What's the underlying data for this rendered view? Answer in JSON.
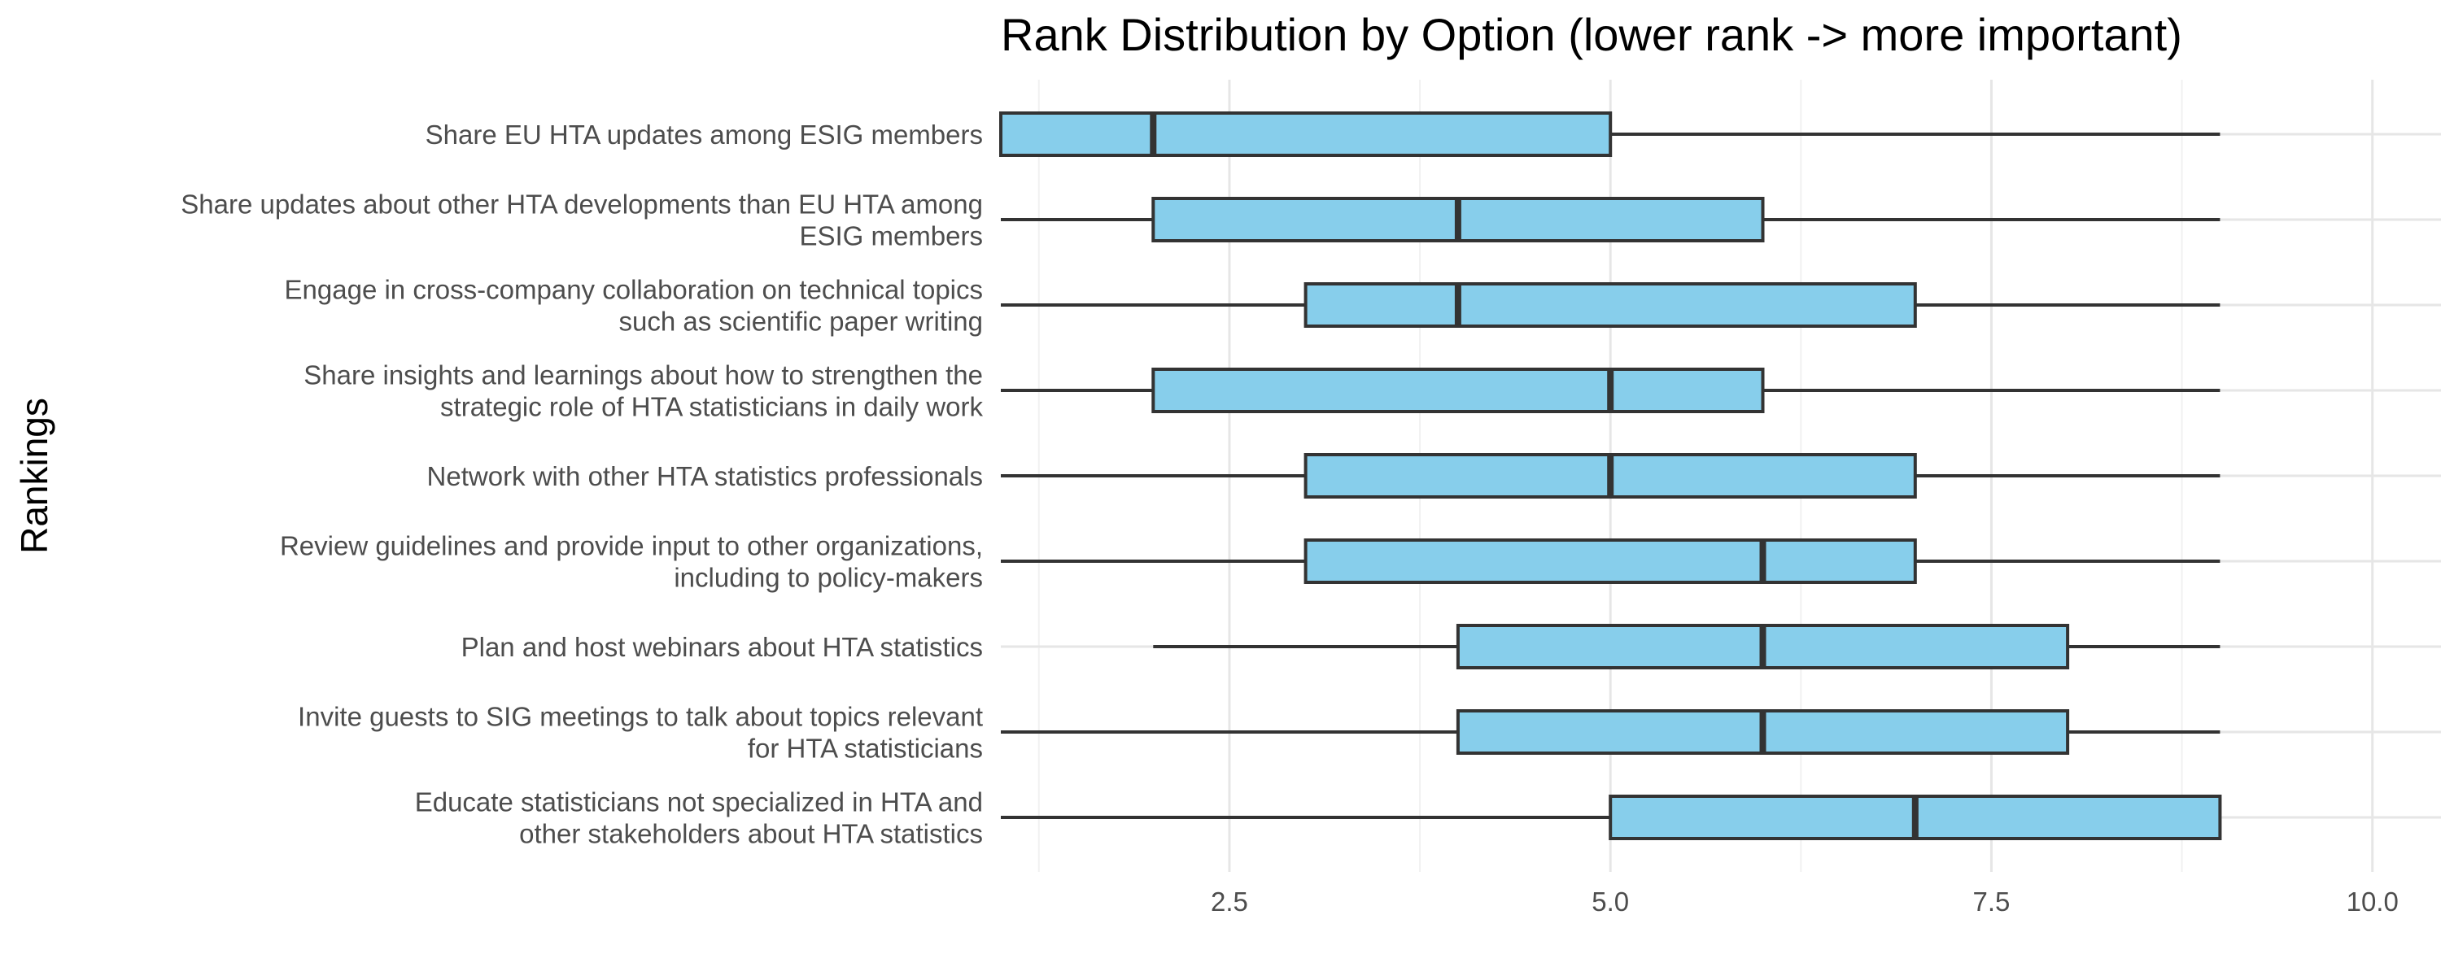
{
  "chart_data": {
    "type": "boxplot",
    "title": "Rank Distribution by Option (lower rank -> more important)",
    "ylabel": "Rankings",
    "xlabel": "",
    "xlim": [
      1.0,
      10.45
    ],
    "x_ticks": [
      2.5,
      5.0,
      7.5,
      10.0
    ],
    "x_tick_labels": [
      "2.5",
      "5.0",
      "7.5",
      "10.0"
    ],
    "grid": true,
    "legend": "none",
    "box_fill": "#87CEEB",
    "box_stroke": "#333333",
    "categories": [
      {
        "label": [
          "Share EU HTA updates among ESIG members"
        ],
        "min": 1,
        "q1": 1,
        "median": 2,
        "q3": 5,
        "max": 9
      },
      {
        "label": [
          "Share updates about other HTA developments than EU HTA among",
          "ESIG members"
        ],
        "min": 1,
        "q1": 2,
        "median": 4,
        "q3": 6,
        "max": 9
      },
      {
        "label": [
          "Engage in cross-company collaboration on technical topics",
          "such as scientific paper writing"
        ],
        "min": 1,
        "q1": 3,
        "median": 4,
        "q3": 7,
        "max": 9
      },
      {
        "label": [
          "Share insights and learnings about how to strengthen the",
          "strategic role of HTA statisticians in daily work"
        ],
        "min": 1,
        "q1": 2,
        "median": 5,
        "q3": 6,
        "max": 9
      },
      {
        "label": [
          "Network with other HTA statistics professionals"
        ],
        "min": 1,
        "q1": 3,
        "median": 5,
        "q3": 7,
        "max": 9
      },
      {
        "label": [
          "Review guidelines and provide input to other organizations,",
          "including to policy-makers"
        ],
        "min": 1,
        "q1": 3,
        "median": 6,
        "q3": 7,
        "max": 9
      },
      {
        "label": [
          "Plan and host webinars about HTA statistics"
        ],
        "min": 2,
        "q1": 4,
        "median": 6,
        "q3": 8,
        "max": 9
      },
      {
        "label": [
          "Invite guests to SIG meetings to talk about topics relevant",
          "for HTA statisticians"
        ],
        "min": 1,
        "q1": 4,
        "median": 6,
        "q3": 8,
        "max": 9
      },
      {
        "label": [
          "Educate statisticians not specialized in HTA and",
          "other stakeholders about HTA statistics"
        ],
        "min": 1,
        "q1": 5,
        "median": 7,
        "q3": 9,
        "max": 9
      }
    ]
  }
}
